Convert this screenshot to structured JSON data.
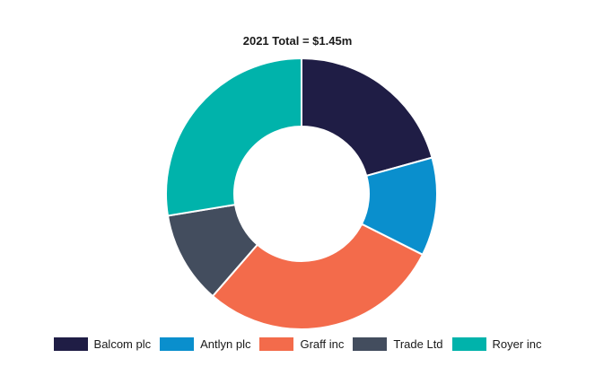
{
  "chart_data": {
    "type": "pie",
    "donut": true,
    "title": "2021 Total = $1.45m",
    "legend_position": "bottom",
    "categories": [
      "Balcom plc",
      "Antlyn plc",
      "Graff inc",
      "Trade Ltd",
      "Royer inc"
    ],
    "values": [
      0.3,
      0.17,
      0.42,
      0.16,
      0.4
    ],
    "colors": [
      "#1f1d45",
      "#0a8fcd",
      "#f36b4b",
      "#434d5e",
      "#00b3ab"
    ]
  }
}
